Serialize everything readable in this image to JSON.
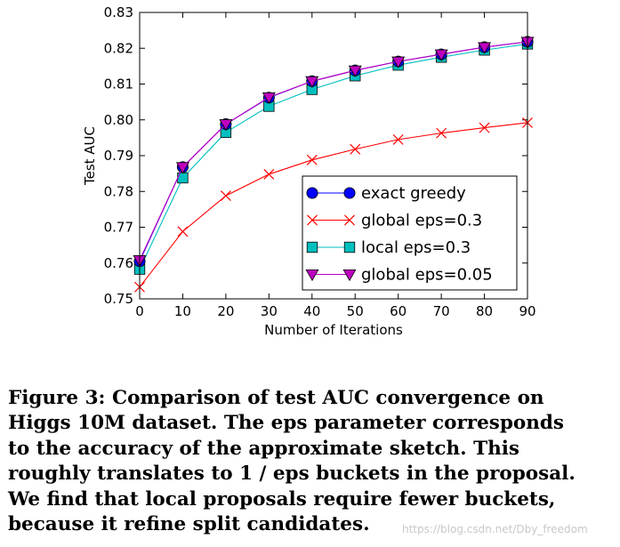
{
  "chart_data": {
    "type": "line",
    "title": "",
    "xlabel": "Number of Iterations",
    "ylabel": "Test AUC",
    "xlim": [
      0,
      90
    ],
    "ylim": [
      0.75,
      0.83
    ],
    "xticks": [
      "0",
      "10",
      "20",
      "30",
      "40",
      "50",
      "60",
      "70",
      "80",
      "90"
    ],
    "yticks": [
      "0.75",
      "0.76",
      "0.77",
      "0.78",
      "0.79",
      "0.80",
      "0.81",
      "0.82",
      "0.83"
    ],
    "grid": false,
    "legend_position": "lower-right",
    "x": [
      0,
      10,
      20,
      30,
      40,
      50,
      60,
      70,
      80,
      90
    ],
    "series": [
      {
        "name": "exact greedy",
        "marker": "circle",
        "color": "#0000ff",
        "marker_color": "#0000ff",
        "values": [
          0.7605,
          0.7868,
          0.7988,
          0.8062,
          0.8108,
          0.8138,
          0.8163,
          0.8183,
          0.8203,
          0.8218
        ]
      },
      {
        "name": "global eps=0.3",
        "marker": "x",
        "color": "#ff0000",
        "marker_color": "#ff0000",
        "values": [
          0.7533,
          0.7688,
          0.7788,
          0.7848,
          0.7888,
          0.7918,
          0.7945,
          0.7963,
          0.7978,
          0.7992
        ]
      },
      {
        "name": "local eps=0.3",
        "marker": "square",
        "color": "#00bfbf",
        "marker_color": "#00bfbf",
        "values": [
          0.7583,
          0.7838,
          0.7965,
          0.8038,
          0.8085,
          0.8123,
          0.8153,
          0.8175,
          0.8195,
          0.8212
        ]
      },
      {
        "name": "global eps=0.05",
        "marker": "triangle-down",
        "color": "#bf00bf",
        "marker_color": "#bf00bf",
        "values": [
          0.7608,
          0.7868,
          0.7988,
          0.8063,
          0.8108,
          0.8138,
          0.8163,
          0.8183,
          0.8203,
          0.8218
        ]
      }
    ]
  },
  "caption": {
    "lines": [
      "Figure 3: Comparison of test AUC convergence on",
      "Higgs 10M dataset. The eps parameter corresponds",
      "to the accuracy of the approximate sketch.  This",
      "roughly translates to 1 / eps buckets in the proposal.",
      "We find that local proposals require fewer buckets,",
      "because it refine split candidates."
    ]
  },
  "watermark": "https://blog.csdn.net/Dby_freedom"
}
